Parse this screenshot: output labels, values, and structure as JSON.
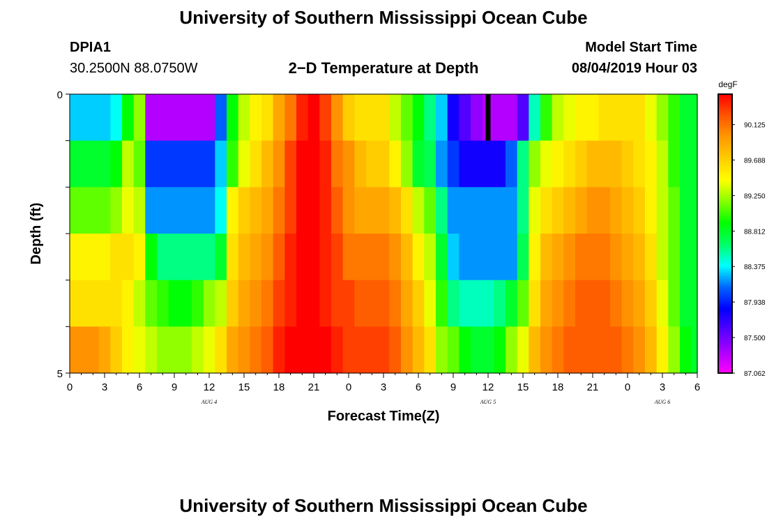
{
  "page": {
    "title_top": "University of Southern Mississippi Ocean Cube",
    "title_bottom": "University of Southern Mississippi Ocean Cube",
    "station_id": "DPIA1",
    "station_coords": "30.2500N 88.0750W",
    "model_start_label": "Model Start Time",
    "model_start_value": "08/04/2019 Hour 03"
  },
  "chart_data": {
    "type": "heatmap",
    "title": "2−D Temperature at Depth",
    "xlabel": "Forecast Time(Z)",
    "ylabel": "Depth (ft)",
    "units": "degF",
    "x_tick_labels": [
      "0",
      "3",
      "6",
      "9",
      "12",
      "15",
      "18",
      "21",
      "0",
      "3",
      "6",
      "9",
      "12",
      "15",
      "18",
      "21",
      "0",
      "3",
      "6"
    ],
    "x_range_hours": [
      0,
      54
    ],
    "day_labels": [
      {
        "label": "AUG 4",
        "at_hour": 12
      },
      {
        "label": "AUG 5",
        "at_hour": 36
      },
      {
        "label": "AUG 6",
        "at_hour": 51
      }
    ],
    "y_tick_labels": [
      "0",
      "5"
    ],
    "ylim": [
      0,
      5
    ],
    "colorbar_labels": [
      "90.125",
      "89.688",
      "89.250",
      "88.812",
      "88.375",
      "87.938",
      "87.500",
      "87.062"
    ],
    "colorbar_range": [
      87.062,
      90.5
    ],
    "colorbar_colors": [
      "#ff00ff",
      "#aa00ff",
      "#5500ff",
      "#0000ff",
      "#0066ff",
      "#00ffff",
      "#00ff66",
      "#00ff00",
      "#88ff00",
      "#ffff00",
      "#ffcc00",
      "#ff9900",
      "#ff5500",
      "#ff0000"
    ],
    "depths": [
      0,
      1,
      2,
      3,
      4,
      5
    ],
    "times": [
      0,
      1,
      2,
      3,
      4,
      5,
      6,
      7,
      8,
      9,
      10,
      11,
      12,
      13,
      14,
      15,
      16,
      17,
      18,
      19,
      20,
      21,
      22,
      23,
      24,
      25,
      26,
      27,
      28,
      29,
      30,
      31,
      32,
      33,
      34,
      35,
      36,
      37,
      38,
      39,
      40,
      41,
      42,
      43,
      44,
      45,
      46,
      47,
      48,
      49,
      50,
      51,
      52,
      53,
      54
    ],
    "values": [
      [
        88.3,
        88.3,
        88.3,
        88.3,
        88.4,
        88.9,
        89.2,
        87.3,
        87.3,
        87.3,
        87.3,
        87.3,
        87.3,
        88.1,
        88.9,
        89.3,
        89.5,
        89.6,
        89.9,
        90.1,
        90.4,
        90.5,
        90.3,
        90.0,
        89.7,
        89.6,
        89.6,
        89.6,
        89.3,
        89.1,
        88.9,
        88.6,
        88.3,
        87.8,
        87.6,
        87.4,
        87.3,
        87.3,
        87.3,
        87.6,
        88.5,
        89.0,
        89.3,
        89.4,
        89.5,
        89.5,
        89.6,
        89.6,
        89.6,
        89.6,
        89.4,
        89.2,
        89.0,
        88.8,
        88.8
      ],
      [
        88.8,
        88.8,
        88.8,
        88.8,
        88.9,
        89.3,
        89.1,
        88.0,
        88.0,
        88.0,
        88.0,
        88.0,
        88.0,
        88.3,
        89.0,
        89.4,
        89.6,
        89.8,
        90.0,
        90.3,
        90.5,
        90.5,
        90.4,
        90.1,
        90.0,
        89.8,
        89.7,
        89.7,
        89.5,
        89.2,
        88.8,
        88.7,
        88.2,
        88.0,
        87.8,
        87.8,
        87.8,
        87.8,
        88.1,
        88.6,
        89.2,
        89.4,
        89.5,
        89.6,
        89.7,
        89.8,
        89.8,
        89.8,
        89.7,
        89.6,
        89.5,
        89.3,
        89.0,
        88.8,
        88.8
      ],
      [
        89.1,
        89.1,
        89.1,
        89.1,
        89.2,
        89.4,
        89.3,
        88.2,
        88.2,
        88.2,
        88.2,
        88.2,
        88.2,
        88.4,
        89.5,
        89.7,
        89.8,
        89.9,
        90.1,
        90.3,
        90.5,
        90.5,
        90.4,
        90.2,
        90.0,
        89.9,
        89.9,
        89.9,
        89.8,
        89.6,
        89.3,
        89.1,
        88.6,
        88.2,
        88.2,
        88.2,
        88.2,
        88.2,
        88.2,
        88.6,
        89.4,
        89.6,
        89.7,
        89.8,
        89.9,
        90.0,
        90.0,
        89.9,
        89.8,
        89.7,
        89.5,
        89.3,
        89.1,
        88.8,
        88.8
      ],
      [
        89.5,
        89.5,
        89.5,
        89.5,
        89.6,
        89.6,
        89.5,
        88.9,
        88.6,
        88.6,
        88.6,
        88.6,
        88.6,
        88.8,
        89.6,
        89.8,
        89.9,
        90.0,
        90.2,
        90.4,
        90.5,
        90.5,
        90.4,
        90.3,
        90.1,
        90.1,
        90.1,
        90.1,
        90.0,
        89.8,
        89.5,
        89.3,
        88.8,
        88.3,
        88.2,
        88.2,
        88.2,
        88.2,
        88.2,
        88.7,
        89.5,
        89.8,
        89.9,
        90.0,
        90.1,
        90.1,
        90.1,
        90.0,
        89.9,
        89.8,
        89.6,
        89.3,
        89.1,
        88.8,
        88.8
      ],
      [
        89.6,
        89.6,
        89.6,
        89.6,
        89.6,
        89.5,
        89.3,
        89.1,
        89.0,
        88.9,
        88.9,
        89.0,
        89.2,
        89.3,
        89.7,
        89.9,
        90.0,
        90.1,
        90.3,
        90.4,
        90.5,
        90.5,
        90.4,
        90.3,
        90.3,
        90.2,
        90.2,
        90.2,
        90.1,
        89.9,
        89.7,
        89.4,
        89.0,
        88.6,
        88.5,
        88.5,
        88.5,
        88.6,
        88.8,
        89.1,
        89.6,
        89.9,
        90.0,
        90.1,
        90.2,
        90.2,
        90.2,
        90.1,
        90.0,
        89.9,
        89.7,
        89.4,
        89.1,
        88.8,
        88.8
      ],
      [
        90.0,
        90.0,
        90.0,
        89.9,
        89.7,
        89.5,
        89.4,
        89.3,
        89.2,
        89.2,
        89.2,
        89.3,
        89.4,
        89.6,
        89.9,
        90.0,
        90.1,
        90.2,
        90.4,
        90.5,
        90.5,
        90.5,
        90.5,
        90.4,
        90.3,
        90.3,
        90.3,
        90.3,
        90.2,
        90.0,
        89.8,
        89.6,
        89.2,
        89.1,
        88.9,
        88.8,
        88.8,
        88.9,
        89.2,
        89.4,
        89.8,
        90.0,
        90.1,
        90.2,
        90.2,
        90.2,
        90.2,
        90.2,
        90.1,
        90.0,
        89.8,
        89.5,
        89.2,
        88.9,
        88.8
      ]
    ],
    "current_time_marker_hour": 36
  }
}
